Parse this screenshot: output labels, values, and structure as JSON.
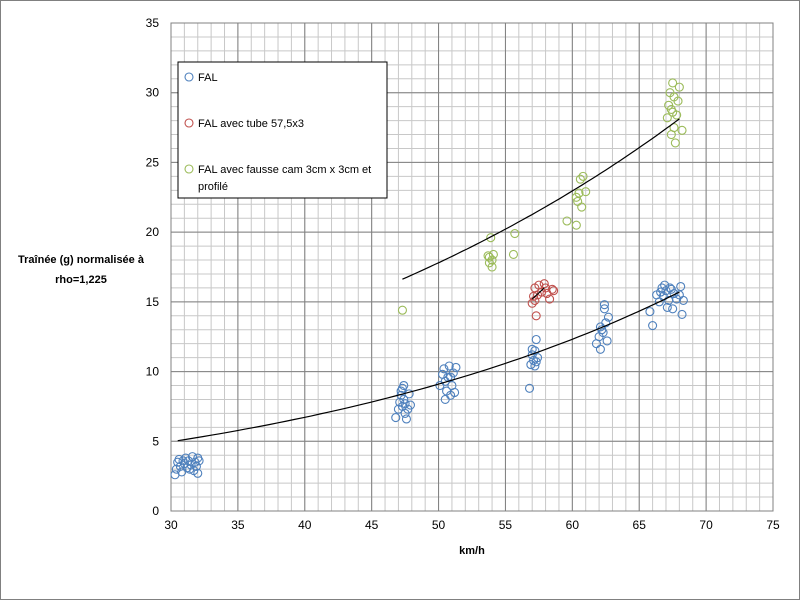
{
  "chart_data": {
    "type": "scatter",
    "xlabel": "km/h",
    "ylabel_lines": [
      "Traînée (g) normalisée à",
      "rho=1,225"
    ],
    "xlim": [
      30,
      75
    ],
    "ylim": [
      0,
      35
    ],
    "x_ticks": [
      30,
      35,
      40,
      45,
      50,
      55,
      60,
      65,
      70,
      75
    ],
    "y_ticks": [
      0,
      5,
      10,
      15,
      20,
      25,
      30,
      35
    ],
    "minor_grid_x": 1,
    "minor_grid_y": 1,
    "grid": true,
    "legend_position": "top-left",
    "series": [
      {
        "name": "FAL",
        "color": "#4f81bd",
        "points": [
          [
            30.3,
            2.6
          ],
          [
            30.4,
            3.0
          ],
          [
            30.5,
            3.5
          ],
          [
            30.6,
            3.7
          ],
          [
            30.7,
            3.2
          ],
          [
            30.8,
            2.8
          ],
          [
            31.0,
            3.4
          ],
          [
            31.1,
            3.8
          ],
          [
            31.2,
            3.1
          ],
          [
            31.3,
            3.6
          ],
          [
            31.5,
            3.3
          ],
          [
            31.6,
            3.9
          ],
          [
            31.7,
            2.9
          ],
          [
            31.8,
            3.5
          ],
          [
            31.9,
            3.2
          ],
          [
            32.0,
            2.7
          ],
          [
            32.1,
            3.6
          ],
          [
            31.4,
            3.0
          ],
          [
            30.9,
            3.6
          ],
          [
            32.0,
            3.8
          ],
          [
            46.8,
            6.7
          ],
          [
            47.0,
            7.3
          ],
          [
            47.1,
            7.8
          ],
          [
            47.2,
            8.3
          ],
          [
            47.3,
            8.8
          ],
          [
            47.3,
            7.5
          ],
          [
            47.4,
            8.0
          ],
          [
            47.5,
            7.0
          ],
          [
            47.6,
            6.6
          ],
          [
            47.7,
            7.3
          ],
          [
            47.8,
            8.4
          ],
          [
            47.4,
            9.0
          ],
          [
            47.2,
            8.6
          ],
          [
            47.5,
            7.7
          ],
          [
            47.9,
            7.6
          ],
          [
            50.1,
            9.0
          ],
          [
            50.3,
            9.8
          ],
          [
            50.4,
            10.2
          ],
          [
            50.5,
            9.3
          ],
          [
            50.6,
            8.6
          ],
          [
            50.7,
            9.6
          ],
          [
            50.8,
            10.4
          ],
          [
            50.9,
            8.3
          ],
          [
            51.0,
            9.0
          ],
          [
            51.1,
            9.9
          ],
          [
            51.2,
            8.5
          ],
          [
            51.3,
            10.3
          ],
          [
            50.5,
            8.0
          ],
          [
            50.9,
            9.6
          ],
          [
            56.8,
            8.8
          ],
          [
            56.9,
            10.5
          ],
          [
            57.0,
            11.2
          ],
          [
            57.1,
            10.8
          ],
          [
            57.2,
            11.5
          ],
          [
            57.3,
            12.3
          ],
          [
            57.3,
            10.7
          ],
          [
            57.4,
            11.0
          ],
          [
            57.0,
            11.6
          ],
          [
            57.2,
            10.4
          ],
          [
            61.8,
            12.0
          ],
          [
            62.0,
            12.5
          ],
          [
            62.1,
            11.6
          ],
          [
            62.2,
            13.0
          ],
          [
            62.3,
            12.8
          ],
          [
            62.4,
            14.8
          ],
          [
            62.5,
            13.5
          ],
          [
            62.6,
            12.2
          ],
          [
            62.7,
            13.9
          ],
          [
            62.4,
            14.5
          ],
          [
            62.1,
            13.2
          ],
          [
            65.8,
            14.3
          ],
          [
            66.0,
            13.3
          ],
          [
            66.3,
            15.5
          ],
          [
            66.5,
            15.0
          ],
          [
            66.7,
            16.0
          ],
          [
            66.8,
            15.4
          ],
          [
            66.9,
            16.2
          ],
          [
            67.0,
            15.8
          ],
          [
            67.1,
            14.6
          ],
          [
            67.2,
            15.1
          ],
          [
            67.4,
            15.9
          ],
          [
            67.5,
            14.5
          ],
          [
            67.6,
            15.6
          ],
          [
            67.8,
            15.2
          ],
          [
            68.0,
            15.5
          ],
          [
            68.1,
            16.1
          ],
          [
            68.2,
            14.1
          ],
          [
            68.3,
            15.1
          ],
          [
            66.6,
            15.7
          ],
          [
            67.3,
            16.0
          ]
        ]
      },
      {
        "name": "FAL avec tube 57,5x3",
        "color": "#c0504d",
        "points": [
          [
            57.0,
            14.9
          ],
          [
            57.1,
            15.4
          ],
          [
            57.2,
            16.0
          ],
          [
            57.3,
            14.0
          ],
          [
            57.4,
            15.5
          ],
          [
            57.5,
            16.2
          ],
          [
            57.7,
            15.7
          ],
          [
            57.9,
            16.3
          ],
          [
            58.1,
            15.6
          ],
          [
            58.3,
            15.2
          ],
          [
            58.5,
            15.9
          ],
          [
            58.6,
            15.8
          ],
          [
            57.2,
            15.1
          ],
          [
            58.0,
            16.0
          ]
        ]
      },
      {
        "name": "FAL avec fausse  cam 3cm x 3cm et profilé",
        "color": "#9bbb59",
        "points": [
          [
            47.3,
            14.4
          ],
          [
            53.7,
            18.3
          ],
          [
            53.8,
            17.8
          ],
          [
            53.9,
            19.6
          ],
          [
            54.0,
            18.0
          ],
          [
            54.1,
            18.4
          ],
          [
            54.0,
            17.5
          ],
          [
            53.8,
            18.2
          ],
          [
            55.6,
            18.4
          ],
          [
            55.7,
            19.9
          ],
          [
            59.6,
            20.8
          ],
          [
            60.3,
            20.5
          ],
          [
            60.4,
            22.2
          ],
          [
            60.5,
            22.8
          ],
          [
            60.6,
            23.8
          ],
          [
            60.7,
            21.8
          ],
          [
            60.8,
            24.0
          ],
          [
            61.0,
            22.9
          ],
          [
            60.3,
            22.5
          ],
          [
            67.1,
            28.2
          ],
          [
            67.2,
            29.1
          ],
          [
            67.3,
            30.0
          ],
          [
            67.4,
            28.8
          ],
          [
            67.5,
            30.7
          ],
          [
            67.6,
            27.5
          ],
          [
            67.6,
            29.7
          ],
          [
            67.7,
            26.4
          ],
          [
            67.8,
            28.4
          ],
          [
            67.9,
            29.4
          ],
          [
            68.0,
            30.4
          ],
          [
            68.2,
            27.3
          ],
          [
            67.4,
            27.0
          ],
          [
            67.5,
            28.6
          ]
        ]
      }
    ],
    "trendlines": [
      {
        "series": "FAL",
        "type": "exponential",
        "a": 2.0,
        "b": 0.0303,
        "x_from": 30.5,
        "x_to": 68.0
      },
      {
        "series": "FAL avec tube 57,5x3",
        "type": "linear",
        "x_from": 57.0,
        "x_to": 57.9,
        "y_from": 15.2,
        "y_to": 16.0
      },
      {
        "series": "FAL avec fausse  cam 3cm x 3cm et profilé",
        "type": "exponential",
        "a": 5.0,
        "b": 0.0254,
        "x_from": 47.3,
        "x_to": 68.0
      }
    ],
    "legend_lines": [
      [
        "FAL"
      ],
      [
        "FAL avec tube 57,5x3"
      ],
      [
        "FAL avec fausse  cam 3cm x 3cm et",
        "profilé"
      ]
    ]
  }
}
